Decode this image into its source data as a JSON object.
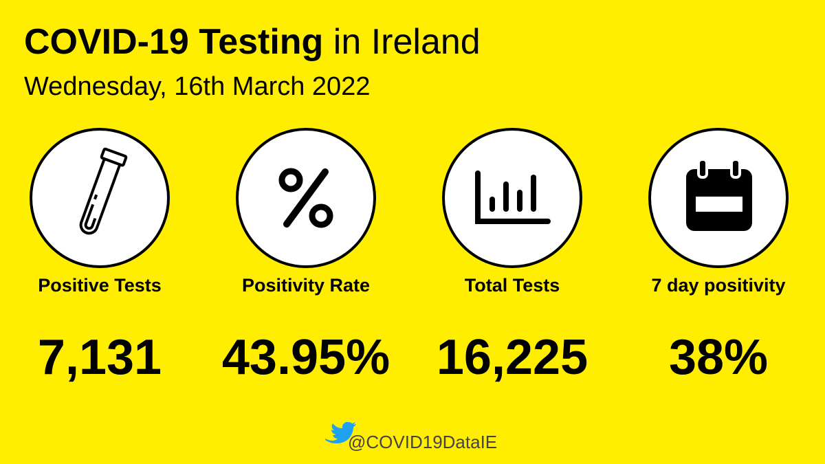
{
  "header": {
    "title_bold": "COVID-19 Testing",
    "title_rest": "in Ireland",
    "date": "Wednesday, 16th March 2022"
  },
  "stats": [
    {
      "label": "Positive Tests",
      "value": "7,131"
    },
    {
      "label": "Positivity Rate",
      "value": "43.95%"
    },
    {
      "label": "Total Tests",
      "value": "16,225"
    },
    {
      "label": "7 day positivity",
      "value": "38%"
    }
  ],
  "footer": {
    "handle": "@COVID19DataIE"
  }
}
